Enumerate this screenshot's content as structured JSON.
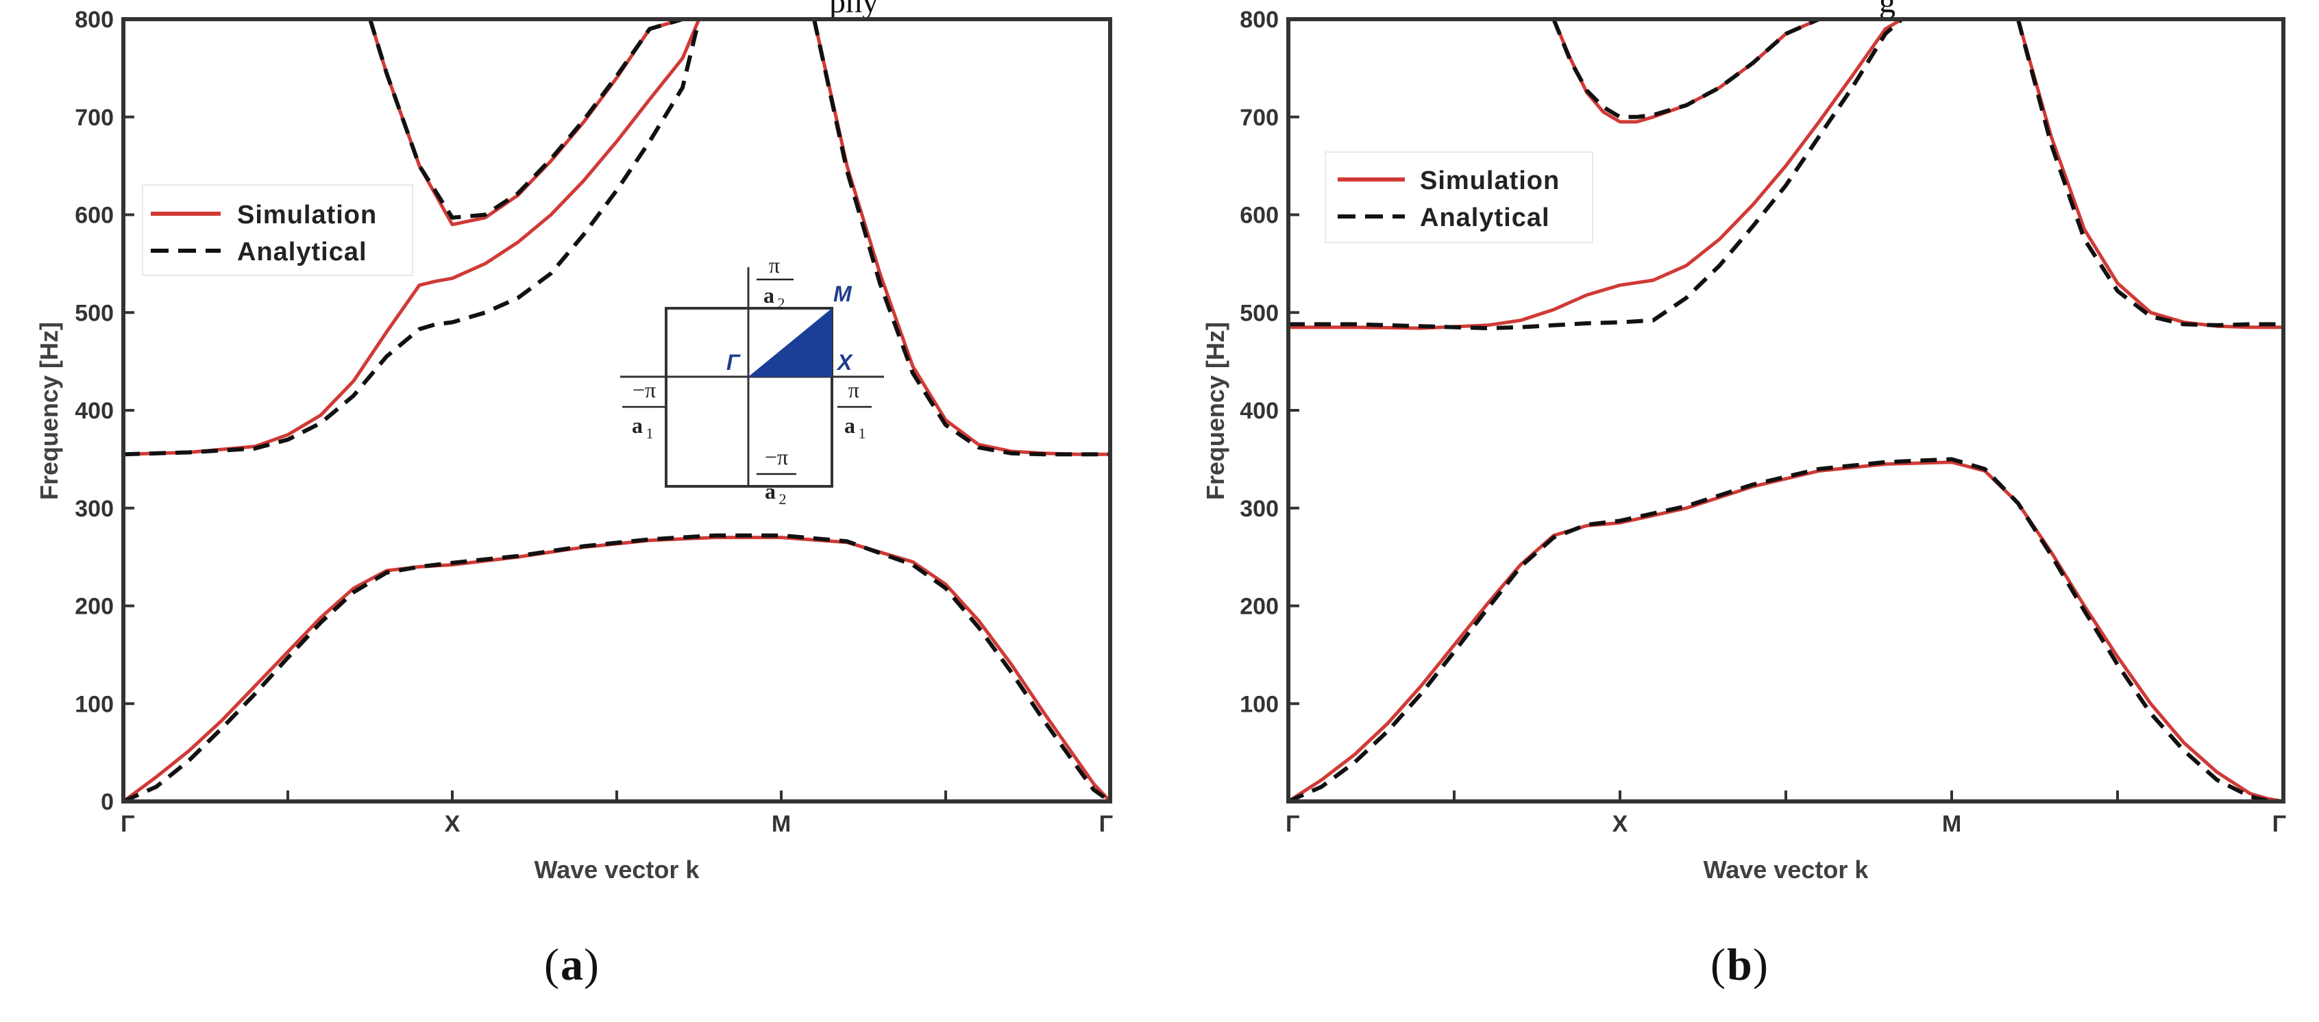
{
  "figure_fragment": {
    "left": "phy",
    "right": "g"
  },
  "chart_data": [
    {
      "type": "line",
      "panel": "a",
      "caption": "a",
      "xlabel": "Wave vector k",
      "ylabel": "Frequency [Hz]",
      "xticks": [
        "Γ",
        "X",
        "M",
        "Γ"
      ],
      "yticks": [
        0,
        100,
        200,
        300,
        400,
        500,
        600,
        700,
        800
      ],
      "ylim": [
        0,
        800
      ],
      "xlim": [
        0,
        3
      ],
      "grid": false,
      "legend_position": "upper-left",
      "legend": [
        "Simulation",
        "Analytical"
      ],
      "inset": {
        "type": "brillouin-zone",
        "points": {
          "gamma": "Γ",
          "x": "X",
          "m": "M"
        },
        "labels": {
          "pos_a2_num": "π",
          "pos_a2_den": "a",
          "pos_a2_sub": "2",
          "neg_a2_num": "−π",
          "neg_a2_den": "a",
          "neg_a2_sub": "2",
          "pos_a1_num": "π",
          "pos_a1_den": "a",
          "pos_a1_sub": "1",
          "neg_a1_num": "−π",
          "neg_a1_den": "a",
          "neg_a1_sub": "1"
        }
      },
      "series": [
        {
          "name": "Simulation",
          "style": "solid",
          "color": "#d03a36",
          "bands": [
            {
              "x": [
                0,
                0.1,
                0.2,
                0.3,
                0.4,
                0.5,
                0.6,
                0.7,
                0.8,
                0.9,
                1,
                1.2,
                1.4,
                1.6,
                1.8,
                2,
                2.2,
                2.4,
                2.5,
                2.6,
                2.7,
                2.8,
                2.9,
                2.95,
                3
              ],
              "y": [
                0,
                25,
                52,
                83,
                118,
                153,
                188,
                218,
                236,
                240,
                242,
                250,
                260,
                267,
                270,
                270,
                265,
                245,
                222,
                185,
                140,
                90,
                42,
                18,
                0
              ]
            },
            {
              "x": [
                0,
                0.2,
                0.4,
                0.5,
                0.6,
                0.7,
                0.8,
                0.9,
                0.95,
                1,
                1.1,
                1.2,
                1.3,
                1.4,
                1.5,
                1.6,
                1.7,
                1.75
              ],
              "y": [
                355,
                357,
                363,
                375,
                395,
                430,
                480,
                528,
                532,
                535,
                550,
                572,
                600,
                635,
                675,
                718,
                760,
                800
              ]
            },
            {
              "x": [
                0.75,
                0.8,
                0.9,
                1,
                1.1,
                1.2,
                1.3,
                1.4,
                1.5,
                1.6,
                1.7,
                1.75
              ],
              "y": [
                800,
                745,
                650,
                590,
                597,
                620,
                655,
                695,
                740,
                790,
                800,
                800
              ]
            },
            {
              "x": [
                2.1,
                2.2,
                2.3,
                2.4,
                2.5,
                2.6,
                2.7,
                2.8,
                2.9,
                3
              ],
              "y": [
                800,
                650,
                540,
                445,
                390,
                365,
                358,
                356,
                355,
                355
              ]
            }
          ]
        },
        {
          "name": "Analytical",
          "style": "dashed",
          "color": "#111111",
          "bands": [
            {
              "x": [
                0,
                0.1,
                0.2,
                0.3,
                0.4,
                0.5,
                0.6,
                0.7,
                0.8,
                0.9,
                1,
                1.2,
                1.4,
                1.6,
                1.8,
                2,
                2.2,
                2.4,
                2.5,
                2.6,
                2.7,
                2.8,
                2.9,
                2.95,
                3
              ],
              "y": [
                0,
                15,
                42,
                75,
                110,
                147,
                183,
                214,
                234,
                240,
                244,
                251,
                261,
                268,
                272,
                272,
                266,
                242,
                218,
                178,
                132,
                82,
                35,
                12,
                0
              ]
            },
            {
              "x": [
                0,
                0.2,
                0.4,
                0.5,
                0.6,
                0.7,
                0.8,
                0.9,
                0.95,
                1,
                1.1,
                1.2,
                1.3,
                1.4,
                1.5,
                1.6,
                1.7,
                1.75
              ],
              "y": [
                355,
                357,
                361,
                370,
                387,
                415,
                455,
                483,
                488,
                490,
                500,
                515,
                540,
                580,
                625,
                675,
                730,
                800
              ]
            },
            {
              "x": [
                0.75,
                0.8,
                0.9,
                1,
                1.1,
                1.2,
                1.3,
                1.4,
                1.5,
                1.6,
                1.7,
                1.75
              ],
              "y": [
                800,
                745,
                650,
                597,
                600,
                622,
                657,
                697,
                742,
                790,
                800,
                800
              ]
            },
            {
              "x": [
                2.1,
                2.2,
                2.3,
                2.4,
                2.5,
                2.6,
                2.7,
                2.8,
                2.9,
                3
              ],
              "y": [
                800,
                645,
                530,
                438,
                385,
                362,
                356,
                355,
                355,
                355
              ]
            }
          ]
        }
      ]
    },
    {
      "type": "line",
      "panel": "b",
      "caption": "b",
      "xlabel": "Wave vector k",
      "ylabel": "Frequency [Hz]",
      "xticks": [
        "Γ",
        "X",
        "M",
        "Γ"
      ],
      "yticks": [
        100,
        200,
        300,
        400,
        500,
        600,
        700,
        800
      ],
      "ylim": [
        0,
        800
      ],
      "xlim": [
        0,
        3
      ],
      "grid": false,
      "legend_position": "upper-left",
      "legend": [
        "Simulation",
        "Analytical"
      ],
      "series": [
        {
          "name": "Simulation",
          "style": "solid",
          "color": "#d03a36",
          "bands": [
            {
              "x": [
                0,
                0.1,
                0.2,
                0.3,
                0.4,
                0.5,
                0.6,
                0.7,
                0.8,
                0.9,
                1,
                1.2,
                1.4,
                1.6,
                1.8,
                2,
                2.1,
                2.2,
                2.3,
                2.4,
                2.5,
                2.6,
                2.7,
                2.8,
                2.9,
                2.95,
                3
              ],
              "y": [
                0,
                22,
                48,
                80,
                118,
                160,
                202,
                242,
                272,
                282,
                285,
                300,
                322,
                338,
                345,
                347,
                338,
                305,
                255,
                200,
                148,
                100,
                60,
                30,
                8,
                3,
                0
              ]
            },
            {
              "x": [
                0,
                0.2,
                0.4,
                0.6,
                0.7,
                0.8,
                0.9,
                1,
                1.1,
                1.2,
                1.3,
                1.4,
                1.5,
                1.6,
                1.7,
                1.8,
                1.85,
                1.9
              ],
              "y": [
                485,
                485,
                484,
                487,
                492,
                503,
                518,
                528,
                533,
                548,
                575,
                610,
                650,
                695,
                742,
                790,
                800,
                800
              ]
            },
            {
              "x": [
                0.8,
                0.85,
                0.9,
                0.95,
                1,
                1.05,
                1.1,
                1.2,
                1.3,
                1.4,
                1.5,
                1.6
              ],
              "y": [
                800,
                760,
                725,
                705,
                695,
                695,
                700,
                712,
                730,
                755,
                785,
                800
              ]
            },
            {
              "x": [
                2.2,
                2.3,
                2.4,
                2.5,
                2.6,
                2.7,
                2.8,
                2.9,
                3
              ],
              "y": [
                800,
                680,
                585,
                530,
                500,
                490,
                486,
                485,
                485
              ]
            }
          ]
        },
        {
          "name": "Analytical",
          "style": "dashed",
          "color": "#111111",
          "bands": [
            {
              "x": [
                0,
                0.1,
                0.2,
                0.3,
                0.4,
                0.5,
                0.6,
                0.7,
                0.8,
                0.9,
                1,
                1.2,
                1.4,
                1.6,
                1.8,
                2,
                2.1,
                2.2,
                2.3,
                2.4,
                2.5,
                2.6,
                2.7,
                2.8,
                2.9,
                2.95,
                3
              ],
              "y": [
                0,
                15,
                40,
                72,
                110,
                153,
                197,
                240,
                270,
                283,
                287,
                302,
                324,
                340,
                347,
                350,
                340,
                305,
                252,
                195,
                140,
                90,
                52,
                22,
                5,
                1,
                0
              ]
            },
            {
              "x": [
                0,
                0.2,
                0.4,
                0.6,
                0.7,
                0.8,
                0.9,
                1,
                1.1,
                1.2,
                1.3,
                1.4,
                1.5,
                1.6,
                1.7,
                1.8,
                1.85,
                1.9
              ],
              "y": [
                488,
                488,
                486,
                484,
                485,
                487,
                489,
                490,
                492,
                515,
                548,
                588,
                630,
                680,
                730,
                785,
                800,
                800
              ]
            },
            {
              "x": [
                0.8,
                0.85,
                0.9,
                0.95,
                1,
                1.05,
                1.1,
                1.2,
                1.3,
                1.4,
                1.5,
                1.6
              ],
              "y": [
                800,
                758,
                727,
                710,
                700,
                700,
                702,
                712,
                730,
                755,
                785,
                800
              ]
            },
            {
              "x": [
                2.2,
                2.3,
                2.4,
                2.5,
                2.6,
                2.7,
                2.8,
                2.9,
                3
              ],
              "y": [
                800,
                672,
                575,
                522,
                496,
                488,
                487,
                488,
                488
              ]
            }
          ]
        }
      ]
    }
  ]
}
